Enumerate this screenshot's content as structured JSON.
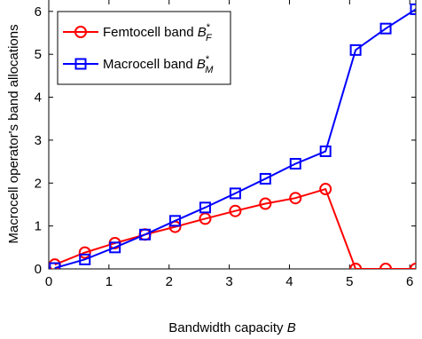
{
  "chart_data": {
    "type": "line",
    "xlabel": "Bandwidth capacity B",
    "ylabel": "Macrocell operator's band allocations",
    "xlim": [
      0,
      6.1
    ],
    "ylim": [
      0,
      6.1
    ],
    "xticks": [
      "0",
      "1",
      "2",
      "3",
      "4",
      "5",
      "6"
    ],
    "yticks": [
      "0",
      "1",
      "2",
      "3",
      "4",
      "5",
      "6"
    ],
    "grid": false,
    "legend_position": "top-left",
    "series": [
      {
        "name": "Femtocell band B*F",
        "color": "#ff0000",
        "marker": "circle",
        "x": [
          0.1,
          0.6,
          1.1,
          1.6,
          2.1,
          2.6,
          3.1,
          3.6,
          4.1,
          4.6,
          5.1,
          5.6,
          6.1
        ],
        "y": [
          0.1,
          0.38,
          0.6,
          0.8,
          0.98,
          1.17,
          1.35,
          1.52,
          1.65,
          1.86,
          0.0,
          0.0,
          0.0
        ]
      },
      {
        "name": "Macrocell band B*M",
        "color": "#0000ff",
        "marker": "square",
        "x": [
          0.1,
          0.6,
          1.1,
          1.6,
          2.1,
          2.6,
          3.1,
          3.6,
          4.1,
          4.6,
          5.1,
          5.6,
          6.1
        ],
        "y": [
          0.02,
          0.22,
          0.5,
          0.8,
          1.12,
          1.43,
          1.76,
          2.1,
          2.45,
          2.74,
          5.1,
          5.6,
          6.05
        ]
      }
    ],
    "legend": [
      {
        "base": "Femtocell band ",
        "var": "B",
        "sup": "*",
        "sub": "F"
      },
      {
        "base": "Macrocell band ",
        "var": "B",
        "sup": "*",
        "sub": "M"
      }
    ]
  }
}
